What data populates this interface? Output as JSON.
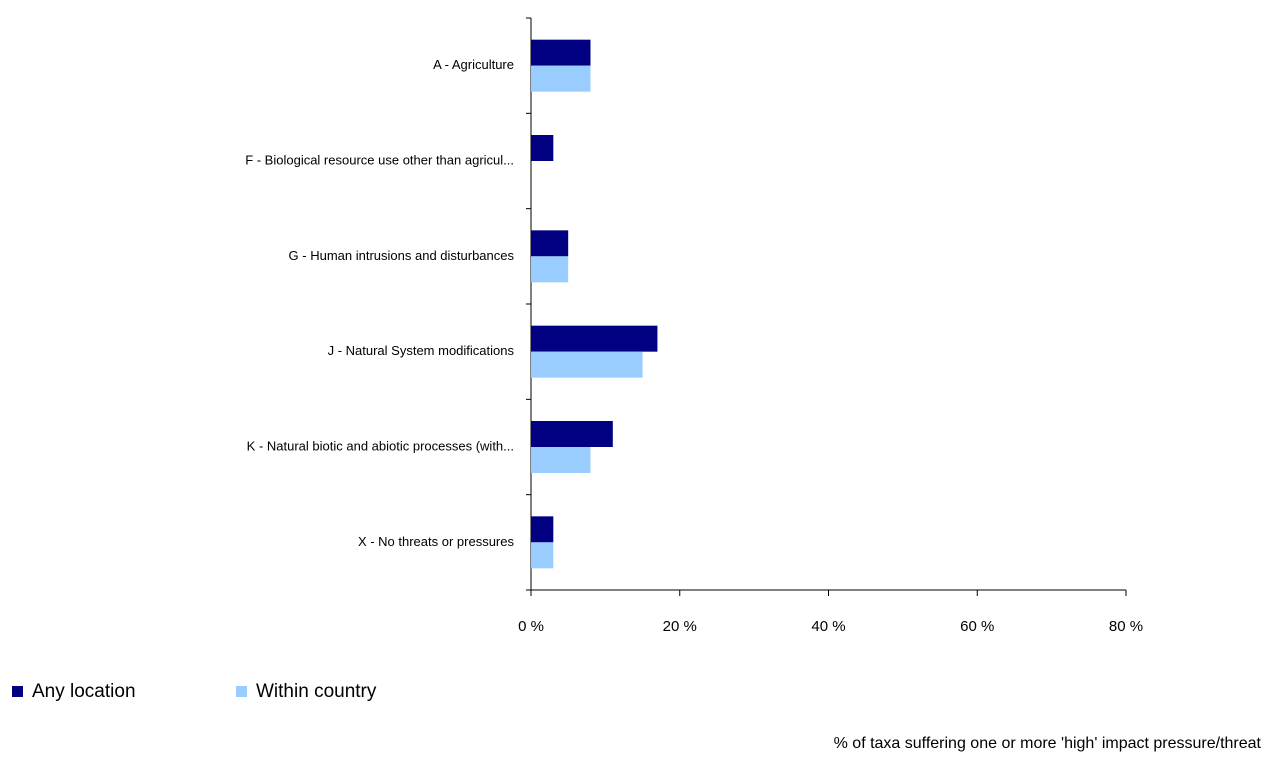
{
  "chart_data": {
    "type": "hbar",
    "categories": [
      "A - Agriculture",
      "F - Biological resource use other than agricul...",
      "G - Human intrusions and disturbances",
      "J - Natural System modifications",
      "K - Natural biotic and abiotic processes (with...",
      "X - No threats or pressures"
    ],
    "series": [
      {
        "name": "Any location",
        "color": "#000080",
        "values": [
          8,
          3,
          5,
          17,
          11,
          3
        ]
      },
      {
        "name": "Within country",
        "color": "#99ccff",
        "values": [
          8,
          null,
          5,
          15,
          8,
          3
        ]
      }
    ],
    "xlim": [
      0,
      80
    ],
    "xticks": [
      {
        "value": 0,
        "label": "0 %"
      },
      {
        "value": 20,
        "label": "20 %"
      },
      {
        "value": 40,
        "label": "40 %"
      },
      {
        "value": 60,
        "label": "60 %"
      },
      {
        "value": 80,
        "label": "80 %"
      }
    ],
    "x_label": "% of taxa suffering one or more 'high' impact pressure/threat",
    "legend": "bottom-left"
  }
}
